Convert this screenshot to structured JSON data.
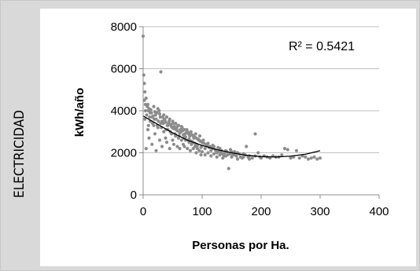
{
  "side_label": "ELECTRICIDAD",
  "chart_data": {
    "type": "scatter",
    "title": "",
    "xlabel": "Personas por Ha.",
    "ylabel": "kWh/año",
    "xlim": [
      0,
      400
    ],
    "ylim": [
      0,
      8000
    ],
    "x_ticks": [
      "0",
      "100",
      "200",
      "300",
      "400"
    ],
    "y_ticks": [
      "0",
      "2000",
      "4000",
      "6000",
      "8000"
    ],
    "grid": "horizontal",
    "annotation": "R² = 0.5421",
    "marker_color": "#8c8c8c",
    "trend_color": "#000000",
    "trendline": {
      "type": "polynomial",
      "points": [
        [
          0,
          3750
        ],
        [
          25,
          3350
        ],
        [
          50,
          2950
        ],
        [
          75,
          2600
        ],
        [
          100,
          2350
        ],
        [
          125,
          2150
        ],
        [
          150,
          2000
        ],
        [
          175,
          1880
        ],
        [
          200,
          1820
        ],
        [
          225,
          1800
        ],
        [
          250,
          1840
        ],
        [
          275,
          1930
        ],
        [
          300,
          2100
        ]
      ]
    },
    "series": [
      {
        "points": [
          [
            0,
            7550
          ],
          [
            1,
            5700
          ],
          [
            2,
            5300
          ],
          [
            3,
            4900
          ],
          [
            5,
            4600
          ],
          [
            8,
            4300
          ],
          [
            4,
            4000
          ],
          [
            10,
            4100
          ],
          [
            12,
            3900
          ],
          [
            15,
            3700
          ],
          [
            18,
            4200
          ],
          [
            20,
            3950
          ],
          [
            22,
            3600
          ],
          [
            25,
            4100
          ],
          [
            28,
            3850
          ],
          [
            30,
            5850
          ],
          [
            32,
            3500
          ],
          [
            35,
            3800
          ],
          [
            38,
            3450
          ],
          [
            40,
            3700
          ],
          [
            42,
            3300
          ],
          [
            45,
            3600
          ],
          [
            48,
            3250
          ],
          [
            50,
            3500
          ],
          [
            52,
            3150
          ],
          [
            55,
            3400
          ],
          [
            58,
            3050
          ],
          [
            60,
            3300
          ],
          [
            62,
            2950
          ],
          [
            65,
            3250
          ],
          [
            68,
            2850
          ],
          [
            70,
            3100
          ],
          [
            72,
            2750
          ],
          [
            75,
            3000
          ],
          [
            78,
            2650
          ],
          [
            80,
            2950
          ],
          [
            82,
            2550
          ],
          [
            85,
            2800
          ],
          [
            88,
            2450
          ],
          [
            90,
            2700
          ],
          [
            92,
            2350
          ],
          [
            95,
            2600
          ],
          [
            98,
            2250
          ],
          [
            100,
            2500
          ],
          [
            105,
            2200
          ],
          [
            110,
            2450
          ],
          [
            115,
            2100
          ],
          [
            120,
            2300
          ],
          [
            125,
            2000
          ],
          [
            130,
            2200
          ],
          [
            135,
            1950
          ],
          [
            140,
            2100
          ],
          [
            145,
            1250
          ],
          [
            150,
            2050
          ],
          [
            155,
            1900
          ],
          [
            160,
            2000
          ],
          [
            165,
            1800
          ],
          [
            170,
            1950
          ],
          [
            175,
            2300
          ],
          [
            180,
            1850
          ],
          [
            190,
            2900
          ],
          [
            195,
            2000
          ],
          [
            200,
            1750
          ],
          [
            210,
            1800
          ],
          [
            220,
            1850
          ],
          [
            230,
            1800
          ],
          [
            240,
            2200
          ],
          [
            245,
            2150
          ],
          [
            250,
            1750
          ],
          [
            260,
            2100
          ],
          [
            270,
            1850
          ],
          [
            280,
            1700
          ],
          [
            290,
            1800
          ],
          [
            300,
            1750
          ],
          [
            5,
            2200
          ],
          [
            8,
            3100
          ],
          [
            10,
            2700
          ],
          [
            12,
            3500
          ],
          [
            15,
            2400
          ],
          [
            18,
            3300
          ],
          [
            20,
            2900
          ],
          [
            22,
            2100
          ],
          [
            25,
            3200
          ],
          [
            28,
            2600
          ],
          [
            30,
            3400
          ],
          [
            32,
            2300
          ],
          [
            35,
            3000
          ],
          [
            38,
            2700
          ],
          [
            40,
            2500
          ],
          [
            42,
            3100
          ],
          [
            45,
            2200
          ],
          [
            48,
            2900
          ],
          [
            50,
            2600
          ],
          [
            52,
            2400
          ],
          [
            55,
            2800
          ],
          [
            58,
            2300
          ],
          [
            60,
            2700
          ],
          [
            62,
            2200
          ],
          [
            65,
            2600
          ],
          [
            68,
            2400
          ],
          [
            70,
            2300
          ],
          [
            72,
            2600
          ],
          [
            75,
            2200
          ],
          [
            78,
            2500
          ],
          [
            80,
            2100
          ],
          [
            82,
            2400
          ],
          [
            85,
            2200
          ],
          [
            88,
            2300
          ],
          [
            90,
            2000
          ],
          [
            92,
            2200
          ],
          [
            95,
            2100
          ],
          [
            98,
            1900
          ],
          [
            100,
            2050
          ],
          [
            105,
            1900
          ],
          [
            110,
            2000
          ],
          [
            115,
            1850
          ],
          [
            120,
            1950
          ],
          [
            125,
            1800
          ],
          [
            130,
            1900
          ],
          [
            135,
            1750
          ],
          [
            140,
            1850
          ],
          [
            150,
            1800
          ],
          [
            160,
            1700
          ],
          [
            170,
            1800
          ],
          [
            180,
            1700
          ],
          [
            190,
            1850
          ],
          [
            3,
            3600
          ],
          [
            6,
            3800
          ],
          [
            9,
            4000
          ],
          [
            11,
            3700
          ],
          [
            14,
            3900
          ],
          [
            16,
            3400
          ],
          [
            19,
            3600
          ],
          [
            21,
            3800
          ],
          [
            24,
            3300
          ],
          [
            26,
            3500
          ],
          [
            29,
            3700
          ],
          [
            31,
            3200
          ],
          [
            34,
            3400
          ],
          [
            36,
            3600
          ],
          [
            39,
            3100
          ],
          [
            41,
            3300
          ],
          [
            44,
            3500
          ],
          [
            46,
            3000
          ],
          [
            49,
            3200
          ],
          [
            51,
            3400
          ],
          [
            54,
            2900
          ],
          [
            56,
            3100
          ],
          [
            59,
            3300
          ],
          [
            61,
            2800
          ],
          [
            64,
            3000
          ],
          [
            66,
            3200
          ],
          [
            69,
            2700
          ],
          [
            71,
            2900
          ],
          [
            74,
            3100
          ],
          [
            76,
            2600
          ],
          [
            79,
            2800
          ],
          [
            81,
            3000
          ],
          [
            84,
            2500
          ],
          [
            86,
            2700
          ],
          [
            89,
            2900
          ],
          [
            91,
            2400
          ],
          [
            94,
            2600
          ],
          [
            96,
            2800
          ],
          [
            99,
            2300
          ],
          [
            102,
            2600
          ],
          [
            107,
            2400
          ],
          [
            112,
            2250
          ],
          [
            118,
            2350
          ],
          [
            122,
            2150
          ],
          [
            128,
            2050
          ],
          [
            133,
            2100
          ],
          [
            138,
            2000
          ],
          [
            143,
            1900
          ],
          [
            148,
            2150
          ],
          [
            155,
            2050
          ],
          [
            2,
            4500
          ],
          [
            4,
            4300
          ],
          [
            7,
            4200
          ],
          [
            9,
            3300
          ],
          [
            13,
            4050
          ],
          [
            17,
            3750
          ],
          [
            23,
            3900
          ],
          [
            27,
            4000
          ],
          [
            33,
            3700
          ],
          [
            37,
            3550
          ],
          [
            43,
            3400
          ],
          [
            47,
            3350
          ],
          [
            53,
            3250
          ],
          [
            57,
            3200
          ],
          [
            63,
            3100
          ],
          [
            67,
            3050
          ],
          [
            73,
            2950
          ],
          [
            77,
            2900
          ],
          [
            83,
            2850
          ],
          [
            87,
            2750
          ],
          [
            93,
            2650
          ],
          [
            97,
            2550
          ],
          [
            103,
            2450
          ],
          [
            108,
            2350
          ],
          [
            113,
            2300
          ],
          [
            117,
            2200
          ],
          [
            123,
            2100
          ],
          [
            127,
            2250
          ],
          [
            132,
            2000
          ],
          [
            137,
            1850
          ],
          [
            142,
            2050
          ],
          [
            147,
            1950
          ],
          [
            152,
            1900
          ],
          [
            158,
            1850
          ],
          [
            163,
            1950
          ],
          [
            168,
            1750
          ],
          [
            173,
            1900
          ],
          [
            178,
            1800
          ],
          [
            185,
            1750
          ],
          [
            198,
            1800
          ],
          [
            205,
            1850
          ],
          [
            215,
            1750
          ],
          [
            225,
            1800
          ],
          [
            235,
            1900
          ],
          [
            255,
            1800
          ],
          [
            265,
            1750
          ],
          [
            275,
            1800
          ],
          [
            285,
            1750
          ],
          [
            295,
            1700
          ]
        ]
      }
    ]
  }
}
